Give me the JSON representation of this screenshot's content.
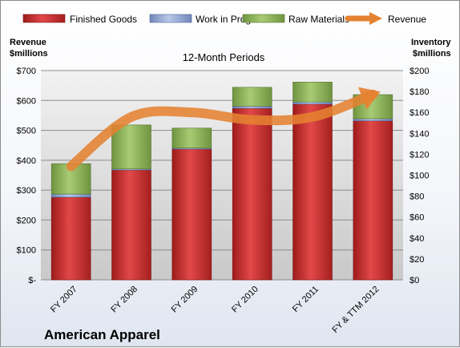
{
  "company": "American Apparel",
  "chart_data": {
    "type": "bar",
    "stacked": true,
    "title": "12-Month Periods",
    "categories": [
      "FY 2007",
      "FY 2008",
      "FY 2009",
      "FY 2010",
      "FY 2011",
      "FY & TTM 2012"
    ],
    "left_axis": {
      "label": [
        "Revenue",
        "$millions"
      ],
      "range": [
        0,
        700
      ],
      "ticks": [
        0,
        100,
        200,
        300,
        400,
        500,
        600,
        700
      ],
      "tick_labels": [
        "$-",
        "$100",
        "$200",
        "$300",
        "$400",
        "$500",
        "$600",
        "$700"
      ]
    },
    "right_axis": {
      "label": [
        "Inventory",
        "$millions"
      ],
      "range": [
        0,
        200
      ],
      "ticks": [
        0,
        20,
        40,
        60,
        80,
        100,
        120,
        140,
        160,
        180,
        200
      ],
      "tick_labels": [
        "$0",
        "$20",
        "$40",
        "$60",
        "$80",
        "$100",
        "$120",
        "$140",
        "$160",
        "$180",
        "$200"
      ]
    },
    "series": [
      {
        "name": "Finished Goods",
        "type": "bar",
        "axis": "right",
        "color": "#c0392b",
        "values": [
          79,
          105,
          125,
          164,
          168,
          152
        ]
      },
      {
        "name": "Work in Progress",
        "type": "bar",
        "axis": "right",
        "color": "#8fa7d6",
        "values": [
          3,
          1,
          1,
          2,
          2,
          2
        ]
      },
      {
        "name": "Raw Materials",
        "type": "bar",
        "axis": "right",
        "color": "#8db35a",
        "values": [
          29,
          42,
          19,
          18,
          19,
          23
        ]
      },
      {
        "name": "Revenue",
        "type": "line",
        "axis": "left",
        "color": "#e58231",
        "values": [
          380,
          545,
          560,
          535,
          545,
          620
        ]
      }
    ],
    "legend_position": "top",
    "grid": true
  }
}
